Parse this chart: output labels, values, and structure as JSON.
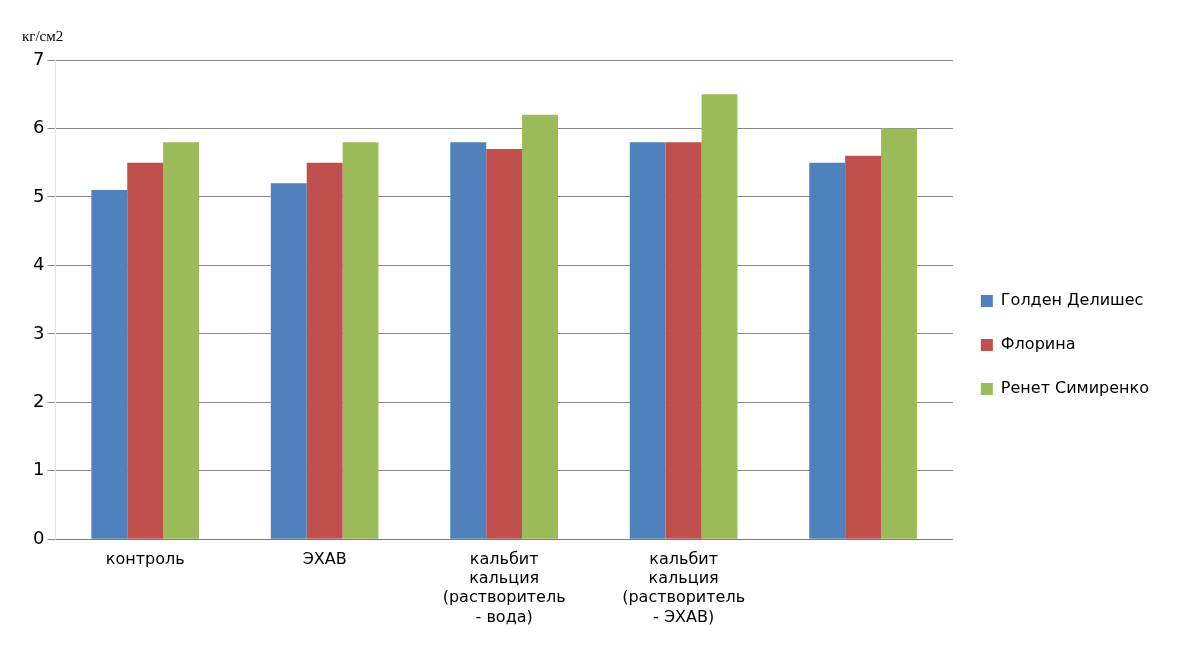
{
  "chart_data": {
    "type": "bar",
    "ylabel": "кг/см2",
    "categories": [
      "контроль",
      "ЭХАВ",
      "кальбит кальция (растворитель - вода)",
      "кальбит кальция (растворитель -  ЭХАВ)",
      null
    ],
    "series": [
      {
        "name": "Голден Делишес",
        "color": "#4f81bd",
        "values": [
          5.1,
          5.2,
          5.8,
          5.8,
          5.5
        ]
      },
      {
        "name": "Флорина",
        "color": "#c0504d",
        "values": [
          5.5,
          5.5,
          5.7,
          5.8,
          5.6
        ]
      },
      {
        "name": "Ренет Симиренко",
        "color": "#9bbb59",
        "values": [
          5.8,
          5.8,
          6.2,
          6.5,
          6.0
        ]
      }
    ],
    "ylim": [
      0,
      7
    ],
    "yticks": [
      0,
      1,
      2,
      3,
      4,
      5,
      6,
      7
    ],
    "grid": "y",
    "legend": "right"
  }
}
